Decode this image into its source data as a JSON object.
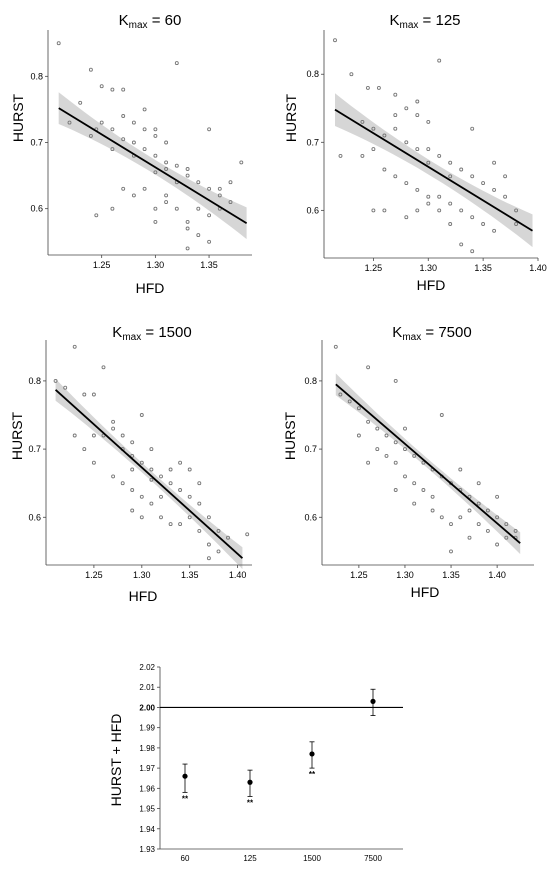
{
  "chart_data": [
    {
      "type": "scatter",
      "title_main": "K",
      "title_sub": "max",
      "title_rest": " = 60",
      "xlabel": "HFD",
      "ylabel": "HURST",
      "xlim": [
        1.2,
        1.39
      ],
      "ylim": [
        0.53,
        0.87
      ],
      "xticks": [
        1.25,
        1.3,
        1.35
      ],
      "yticks": [
        0.6,
        0.7,
        0.8
      ],
      "xtick_labels": [
        "1.25",
        "1.30",
        "1.35"
      ],
      "ytick_labels": [
        "0.6",
        "0.7",
        "0.8"
      ],
      "fit": {
        "x": [
          1.21,
          1.385
        ],
        "y": [
          0.752,
          0.578
        ],
        "band": [
          0.024,
          0.011,
          0.024
        ]
      },
      "points": [
        [
          1.21,
          0.85
        ],
        [
          1.24,
          0.81
        ],
        [
          1.25,
          0.785
        ],
        [
          1.26,
          0.78
        ],
        [
          1.27,
          0.78
        ],
        [
          1.23,
          0.76
        ],
        [
          1.245,
          0.72
        ],
        [
          1.22,
          0.73
        ],
        [
          1.24,
          0.71
        ],
        [
          1.25,
          0.73
        ],
        [
          1.26,
          0.72
        ],
        [
          1.27,
          0.74
        ],
        [
          1.28,
          0.73
        ],
        [
          1.29,
          0.72
        ],
        [
          1.3,
          0.71
        ],
        [
          1.31,
          0.7
        ],
        [
          1.29,
          0.75
        ],
        [
          1.3,
          0.72
        ],
        [
          1.27,
          0.705
        ],
        [
          1.28,
          0.7
        ],
        [
          1.29,
          0.69
        ],
        [
          1.3,
          0.68
        ],
        [
          1.31,
          0.67
        ],
        [
          1.32,
          0.665
        ],
        [
          1.33,
          0.66
        ],
        [
          1.34,
          0.64
        ],
        [
          1.35,
          0.63
        ],
        [
          1.36,
          0.62
        ],
        [
          1.37,
          0.61
        ],
        [
          1.31,
          0.66
        ],
        [
          1.32,
          0.64
        ],
        [
          1.33,
          0.65
        ],
        [
          1.3,
          0.655
        ],
        [
          1.28,
          0.68
        ],
        [
          1.26,
          0.69
        ],
        [
          1.245,
          0.59
        ],
        [
          1.26,
          0.6
        ],
        [
          1.28,
          0.62
        ],
        [
          1.29,
          0.63
        ],
        [
          1.3,
          0.6
        ],
        [
          1.31,
          0.61
        ],
        [
          1.32,
          0.6
        ],
        [
          1.33,
          0.58
        ],
        [
          1.34,
          0.6
        ],
        [
          1.35,
          0.59
        ],
        [
          1.36,
          0.6
        ],
        [
          1.34,
          0.56
        ],
        [
          1.35,
          0.55
        ],
        [
          1.33,
          0.57
        ],
        [
          1.32,
          0.82
        ],
        [
          1.35,
          0.72
        ],
        [
          1.38,
          0.67
        ],
        [
          1.37,
          0.64
        ],
        [
          1.36,
          0.63
        ],
        [
          1.3,
          0.58
        ],
        [
          1.31,
          0.62
        ],
        [
          1.27,
          0.63
        ],
        [
          1.33,
          0.54
        ]
      ]
    },
    {
      "type": "scatter",
      "title_main": "K",
      "title_sub": "max",
      "title_rest": " = 125",
      "xlabel": "HFD",
      "ylabel": "HURST",
      "xlim": [
        1.205,
        1.4
      ],
      "ylim": [
        0.53,
        0.865
      ],
      "xticks": [
        1.25,
        1.3,
        1.35,
        1.4
      ],
      "yticks": [
        0.6,
        0.7,
        0.8
      ],
      "xtick_labels": [
        "1.25",
        "1.30",
        "1.35",
        "1.40"
      ],
      "ytick_labels": [
        "0.6",
        "0.7",
        "0.8"
      ],
      "fit": {
        "x": [
          1.215,
          1.395
        ],
        "y": [
          0.748,
          0.57
        ],
        "band": [
          0.024,
          0.011,
          0.024
        ]
      },
      "points": [
        [
          1.215,
          0.85
        ],
        [
          1.23,
          0.8
        ],
        [
          1.245,
          0.78
        ],
        [
          1.255,
          0.78
        ],
        [
          1.27,
          0.77
        ],
        [
          1.28,
          0.75
        ],
        [
          1.29,
          0.74
        ],
        [
          1.3,
          0.73
        ],
        [
          1.31,
          0.82
        ],
        [
          1.24,
          0.73
        ],
        [
          1.25,
          0.72
        ],
        [
          1.26,
          0.71
        ],
        [
          1.27,
          0.72
        ],
        [
          1.28,
          0.7
        ],
        [
          1.29,
          0.69
        ],
        [
          1.3,
          0.69
        ],
        [
          1.31,
          0.68
        ],
        [
          1.32,
          0.67
        ],
        [
          1.33,
          0.66
        ],
        [
          1.34,
          0.65
        ],
        [
          1.35,
          0.64
        ],
        [
          1.36,
          0.63
        ],
        [
          1.37,
          0.62
        ],
        [
          1.38,
          0.6
        ],
        [
          1.22,
          0.68
        ],
        [
          1.24,
          0.68
        ],
        [
          1.25,
          0.69
        ],
        [
          1.26,
          0.66
        ],
        [
          1.27,
          0.65
        ],
        [
          1.28,
          0.64
        ],
        [
          1.29,
          0.63
        ],
        [
          1.3,
          0.62
        ],
        [
          1.31,
          0.62
        ],
        [
          1.32,
          0.61
        ],
        [
          1.33,
          0.6
        ],
        [
          1.34,
          0.59
        ],
        [
          1.35,
          0.58
        ],
        [
          1.36,
          0.67
        ],
        [
          1.37,
          0.65
        ],
        [
          1.34,
          0.72
        ],
        [
          1.25,
          0.6
        ],
        [
          1.26,
          0.6
        ],
        [
          1.28,
          0.59
        ],
        [
          1.29,
          0.6
        ],
        [
          1.3,
          0.61
        ],
        [
          1.31,
          0.6
        ],
        [
          1.32,
          0.58
        ],
        [
          1.33,
          0.55
        ],
        [
          1.34,
          0.54
        ],
        [
          1.36,
          0.57
        ],
        [
          1.38,
          0.58
        ],
        [
          1.27,
          0.74
        ],
        [
          1.29,
          0.76
        ],
        [
          1.3,
          0.67
        ],
        [
          1.32,
          0.65
        ]
      ]
    },
    {
      "type": "scatter",
      "title_main": "K",
      "title_sub": "max",
      "title_rest": " = 1500",
      "xlabel": "HFD",
      "ylabel": "HURST",
      "xlim": [
        1.2,
        1.415
      ],
      "ylim": [
        0.53,
        0.86
      ],
      "xticks": [
        1.25,
        1.3,
        1.35,
        1.4
      ],
      "yticks": [
        0.6,
        0.7,
        0.8
      ],
      "xtick_labels": [
        "1.25",
        "1.30",
        "1.35",
        "1.40"
      ],
      "ytick_labels": [
        "0.6",
        "0.7",
        "0.8"
      ],
      "fit": {
        "x": [
          1.21,
          1.405
        ],
        "y": [
          0.787,
          0.54
        ],
        "band": [
          0.016,
          0.007,
          0.016
        ]
      },
      "points": [
        [
          1.23,
          0.85
        ],
        [
          1.26,
          0.82
        ],
        [
          1.21,
          0.8
        ],
        [
          1.22,
          0.79
        ],
        [
          1.24,
          0.78
        ],
        [
          1.25,
          0.78
        ],
        [
          1.27,
          0.74
        ],
        [
          1.28,
          0.72
        ],
        [
          1.29,
          0.71
        ],
        [
          1.3,
          0.75
        ],
        [
          1.31,
          0.7
        ],
        [
          1.23,
          0.72
        ],
        [
          1.24,
          0.7
        ],
        [
          1.25,
          0.68
        ],
        [
          1.26,
          0.72
        ],
        [
          1.27,
          0.73
        ],
        [
          1.28,
          0.7
        ],
        [
          1.29,
          0.69
        ],
        [
          1.3,
          0.68
        ],
        [
          1.31,
          0.67
        ],
        [
          1.32,
          0.66
        ],
        [
          1.33,
          0.65
        ],
        [
          1.34,
          0.64
        ],
        [
          1.35,
          0.63
        ],
        [
          1.36,
          0.62
        ],
        [
          1.37,
          0.6
        ],
        [
          1.38,
          0.58
        ],
        [
          1.39,
          0.57
        ],
        [
          1.25,
          0.72
        ],
        [
          1.27,
          0.66
        ],
        [
          1.28,
          0.65
        ],
        [
          1.29,
          0.64
        ],
        [
          1.3,
          0.63
        ],
        [
          1.31,
          0.62
        ],
        [
          1.32,
          0.6
        ],
        [
          1.33,
          0.59
        ],
        [
          1.34,
          0.59
        ],
        [
          1.35,
          0.6
        ],
        [
          1.36,
          0.58
        ],
        [
          1.37,
          0.56
        ],
        [
          1.38,
          0.55
        ],
        [
          1.29,
          0.61
        ],
        [
          1.3,
          0.6
        ],
        [
          1.33,
          0.67
        ],
        [
          1.34,
          0.68
        ],
        [
          1.35,
          0.67
        ],
        [
          1.36,
          0.65
        ],
        [
          1.32,
          0.63
        ],
        [
          1.41,
          0.575
        ],
        [
          1.37,
          0.54
        ],
        [
          1.29,
          0.67
        ],
        [
          1.31,
          0.655
        ]
      ]
    },
    {
      "type": "scatter",
      "title_main": "K",
      "title_sub": "max",
      "title_rest": " = 7500",
      "xlabel": "HFD",
      "ylabel": "HURST",
      "xlim": [
        1.21,
        1.44
      ],
      "ylim": [
        0.53,
        0.86
      ],
      "xticks": [
        1.25,
        1.3,
        1.35,
        1.4
      ],
      "yticks": [
        0.6,
        0.7,
        0.8
      ],
      "xtick_labels": [
        "1.25",
        "1.30",
        "1.35",
        "1.40"
      ],
      "ytick_labels": [
        "0.6",
        "0.7",
        "0.8"
      ],
      "fit": {
        "x": [
          1.225,
          1.425
        ],
        "y": [
          0.795,
          0.562
        ],
        "band": [
          0.016,
          0.007,
          0.016
        ]
      },
      "points": [
        [
          1.225,
          0.85
        ],
        [
          1.26,
          0.82
        ],
        [
          1.29,
          0.8
        ],
        [
          1.23,
          0.78
        ],
        [
          1.24,
          0.77
        ],
        [
          1.25,
          0.76
        ],
        [
          1.26,
          0.74
        ],
        [
          1.27,
          0.73
        ],
        [
          1.28,
          0.72
        ],
        [
          1.29,
          0.71
        ],
        [
          1.3,
          0.7
        ],
        [
          1.31,
          0.69
        ],
        [
          1.32,
          0.68
        ],
        [
          1.33,
          0.67
        ],
        [
          1.34,
          0.66
        ],
        [
          1.35,
          0.65
        ],
        [
          1.36,
          0.64
        ],
        [
          1.37,
          0.63
        ],
        [
          1.38,
          0.62
        ],
        [
          1.39,
          0.61
        ],
        [
          1.4,
          0.6
        ],
        [
          1.41,
          0.59
        ],
        [
          1.42,
          0.57
        ],
        [
          1.25,
          0.72
        ],
        [
          1.27,
          0.7
        ],
        [
          1.28,
          0.69
        ],
        [
          1.29,
          0.68
        ],
        [
          1.3,
          0.66
        ],
        [
          1.31,
          0.65
        ],
        [
          1.32,
          0.64
        ],
        [
          1.33,
          0.63
        ],
        [
          1.34,
          0.6
        ],
        [
          1.35,
          0.59
        ],
        [
          1.36,
          0.6
        ],
        [
          1.37,
          0.61
        ],
        [
          1.38,
          0.59
        ],
        [
          1.39,
          0.58
        ],
        [
          1.4,
          0.56
        ],
        [
          1.41,
          0.57
        ],
        [
          1.26,
          0.68
        ],
        [
          1.3,
          0.73
        ],
        [
          1.34,
          0.75
        ],
        [
          1.36,
          0.67
        ],
        [
          1.38,
          0.65
        ],
        [
          1.31,
          0.62
        ],
        [
          1.33,
          0.61
        ],
        [
          1.4,
          0.63
        ],
        [
          1.42,
          0.58
        ],
        [
          1.35,
          0.55
        ],
        [
          1.37,
          0.57
        ],
        [
          1.29,
          0.64
        ]
      ]
    },
    {
      "type": "scatter",
      "subtype": "errorbar",
      "title": "",
      "xlabel": "",
      "ylabel": "HURST + HFD",
      "categories": [
        "60",
        "125",
        "1500",
        "7500"
      ],
      "values": [
        1.966,
        1.963,
        1.977,
        2.003
      ],
      "err_low": [
        1.958,
        1.956,
        1.97,
        1.996
      ],
      "err_high": [
        1.972,
        1.969,
        1.983,
        2.009
      ],
      "annotations": [
        "**",
        "**",
        "**",
        ""
      ],
      "reference_line": 2.0,
      "ylim": [
        1.93,
        2.02
      ],
      "yticks": [
        1.93,
        1.94,
        1.95,
        1.96,
        1.97,
        1.98,
        1.99,
        2.0,
        2.01,
        2.02
      ],
      "ytick_labels": [
        "1.93",
        "1.94",
        "1.95",
        "1.96",
        "1.97",
        "1.98",
        "1.99",
        "2.00",
        "2.01",
        "2.02"
      ]
    }
  ]
}
